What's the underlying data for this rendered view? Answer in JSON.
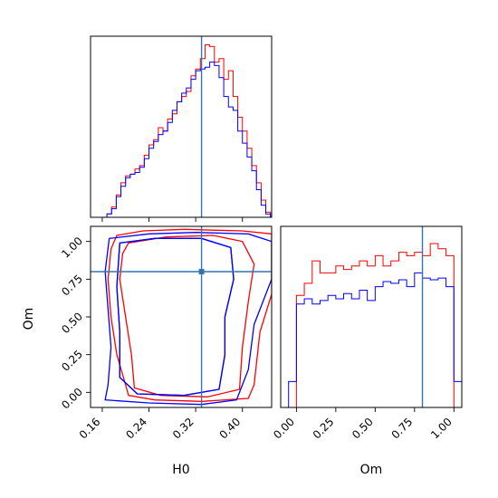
{
  "chart_data": {
    "type": "corner",
    "colors": {
      "series_a": "#ff0000",
      "series_b": "#0000ff",
      "truth": "#3274b5"
    },
    "truth": {
      "H0": 0.33,
      "Om": 0.8
    },
    "series": [
      {
        "name": "",
        "color": "#ff0000"
      },
      {
        "name": "",
        "color": "#0000ff"
      }
    ],
    "panels": [
      {
        "id": "hist-H0",
        "type": "histogram",
        "param": "H0",
        "xlim": [
          0.14,
          0.45
        ],
        "ticks": [
          "0.16",
          "0.24",
          "0.32",
          "0.40"
        ],
        "tick_values": [
          0.16,
          0.24,
          0.32,
          0.4
        ],
        "show_ticklabels": false,
        "bin_edges": [
          0.168,
          0.176,
          0.184,
          0.192,
          0.2,
          0.208,
          0.216,
          0.224,
          0.232,
          0.24,
          0.248,
          0.256,
          0.264,
          0.272,
          0.28,
          0.288,
          0.296,
          0.304,
          0.312,
          0.32,
          0.328,
          0.336,
          0.344,
          0.352,
          0.36,
          0.368,
          0.376,
          0.384,
          0.392,
          0.4,
          0.408,
          0.416,
          0.424,
          0.432,
          0.44,
          0.448
        ],
        "red": [
          0.02,
          0.06,
          0.13,
          0.2,
          0.24,
          0.25,
          0.28,
          0.3,
          0.36,
          0.42,
          0.45,
          0.52,
          0.5,
          0.57,
          0.6,
          0.67,
          0.7,
          0.73,
          0.82,
          0.86,
          0.92,
          1.0,
          0.99,
          0.9,
          0.92,
          0.8,
          0.85,
          0.7,
          0.58,
          0.5,
          0.4,
          0.3,
          0.2,
          0.1,
          0.03
        ],
        "blue": [
          0.02,
          0.05,
          0.12,
          0.18,
          0.23,
          0.25,
          0.26,
          0.29,
          0.34,
          0.4,
          0.44,
          0.48,
          0.5,
          0.55,
          0.62,
          0.67,
          0.72,
          0.75,
          0.8,
          0.85,
          0.86,
          0.87,
          0.9,
          0.88,
          0.81,
          0.7,
          0.64,
          0.62,
          0.5,
          0.43,
          0.35,
          0.27,
          0.16,
          0.07,
          0.02
        ]
      },
      {
        "id": "contour-H0-Om",
        "type": "contour",
        "xparam": "H0",
        "yparam": "Om",
        "xlabel": "H0",
        "ylabel": "Om",
        "xlim": [
          0.14,
          0.45
        ],
        "ylim": [
          -0.1,
          1.1
        ],
        "xticks": [
          "0.16",
          "0.24",
          "0.32",
          "0.40"
        ],
        "xtick_values": [
          0.16,
          0.24,
          0.32,
          0.4
        ],
        "yticks": [
          "0.00",
          "0.25",
          "0.50",
          "0.75",
          "1.00"
        ],
        "ytick_values": [
          0.0,
          0.25,
          0.5,
          0.75,
          1.0
        ],
        "contours": [
          {
            "color": "red",
            "points": [
              [
                0.185,
                1.04
              ],
              [
                0.23,
                1.07
              ],
              [
                0.3,
                1.08
              ],
              [
                0.4,
                1.07
              ],
              [
                0.45,
                1.05
              ],
              [
                0.45,
                0.65
              ],
              [
                0.43,
                0.4
              ],
              [
                0.42,
                0.05
              ],
              [
                0.41,
                -0.04
              ],
              [
                0.33,
                -0.06
              ],
              [
                0.25,
                -0.05
              ],
              [
                0.205,
                -0.02
              ],
              [
                0.2,
                0.05
              ],
              [
                0.185,
                0.25
              ],
              [
                0.175,
                0.5
              ],
              [
                0.17,
                0.75
              ],
              [
                0.175,
                0.95
              ]
            ]
          },
          {
            "color": "red",
            "points": [
              [
                0.205,
                0.99
              ],
              [
                0.27,
                1.03
              ],
              [
                0.35,
                1.04
              ],
              [
                0.4,
                1.0
              ],
              [
                0.42,
                0.85
              ],
              [
                0.41,
                0.6
              ],
              [
                0.4,
                0.3
              ],
              [
                0.395,
                0.02
              ],
              [
                0.34,
                -0.03
              ],
              [
                0.26,
                -0.02
              ],
              [
                0.215,
                0.03
              ],
              [
                0.21,
                0.25
              ],
              [
                0.2,
                0.5
              ],
              [
                0.19,
                0.75
              ],
              [
                0.195,
                0.92
              ]
            ]
          },
          {
            "color": "blue",
            "points": [
              [
                0.172,
                1.02
              ],
              [
                0.24,
                1.05
              ],
              [
                0.32,
                1.06
              ],
              [
                0.41,
                1.05
              ],
              [
                0.45,
                1.0
              ],
              [
                0.45,
                0.75
              ],
              [
                0.42,
                0.45
              ],
              [
                0.41,
                0.15
              ],
              [
                0.39,
                -0.05
              ],
              [
                0.33,
                -0.08
              ],
              [
                0.24,
                -0.07
              ],
              [
                0.165,
                -0.05
              ],
              [
                0.17,
                0.05
              ],
              [
                0.175,
                0.3
              ],
              [
                0.17,
                0.55
              ],
              [
                0.165,
                0.8
              ]
            ]
          },
          {
            "color": "blue",
            "points": [
              [
                0.19,
                0.99
              ],
              [
                0.25,
                1.02
              ],
              [
                0.33,
                1.02
              ],
              [
                0.38,
                0.96
              ],
              [
                0.385,
                0.75
              ],
              [
                0.37,
                0.5
              ],
              [
                0.37,
                0.25
              ],
              [
                0.36,
                0.02
              ],
              [
                0.3,
                -0.02
              ],
              [
                0.22,
                -0.01
              ],
              [
                0.19,
                0.1
              ],
              [
                0.19,
                0.4
              ],
              [
                0.185,
                0.7
              ]
            ]
          },
          {
            "color": "blue",
            "points": [
              [
                0.19,
                0.99
              ],
              [
                0.25,
                1.02
              ],
              [
                0.33,
                1.02
              ],
              [
                0.38,
                0.96
              ],
              [
                0.385,
                0.75
              ],
              [
                0.37,
                0.5
              ],
              [
                0.37,
                0.25
              ],
              [
                0.36,
                0.02
              ],
              [
                0.3,
                -0.02
              ],
              [
                0.22,
                -0.01
              ],
              [
                0.19,
                0.1
              ],
              [
                0.19,
                0.4
              ],
              [
                0.185,
                0.7
              ]
            ]
          }
        ]
      },
      {
        "id": "hist-Om",
        "type": "histogram",
        "param": "Om",
        "xlabel": "Om",
        "xlim": [
          -0.1,
          1.05
        ],
        "ticks": [
          "0.00",
          "0.25",
          "0.50",
          "0.75",
          "1.00"
        ],
        "tick_values": [
          0.0,
          0.25,
          0.5,
          0.75,
          1.0
        ],
        "show_ticklabels": true,
        "bin_edges": [
          -0.05,
          0.0,
          0.05,
          0.1,
          0.15,
          0.2,
          0.25,
          0.3,
          0.35,
          0.4,
          0.45,
          0.5,
          0.55,
          0.6,
          0.65,
          0.7,
          0.75,
          0.8,
          0.85,
          0.9,
          0.95,
          1.0,
          1.05
        ],
        "red": [
          0.0,
          0.65,
          0.72,
          0.85,
          0.78,
          0.78,
          0.82,
          0.8,
          0.82,
          0.85,
          0.82,
          0.88,
          0.82,
          0.85,
          0.9,
          0.88,
          0.9,
          0.88,
          0.95,
          0.92,
          0.88,
          0.0
        ],
        "blue": [
          0.15,
          0.6,
          0.63,
          0.6,
          0.62,
          0.65,
          0.63,
          0.66,
          0.63,
          0.68,
          0.62,
          0.7,
          0.73,
          0.72,
          0.74,
          0.7,
          0.78,
          0.75,
          0.74,
          0.75,
          0.7,
          0.15
        ]
      }
    ]
  }
}
